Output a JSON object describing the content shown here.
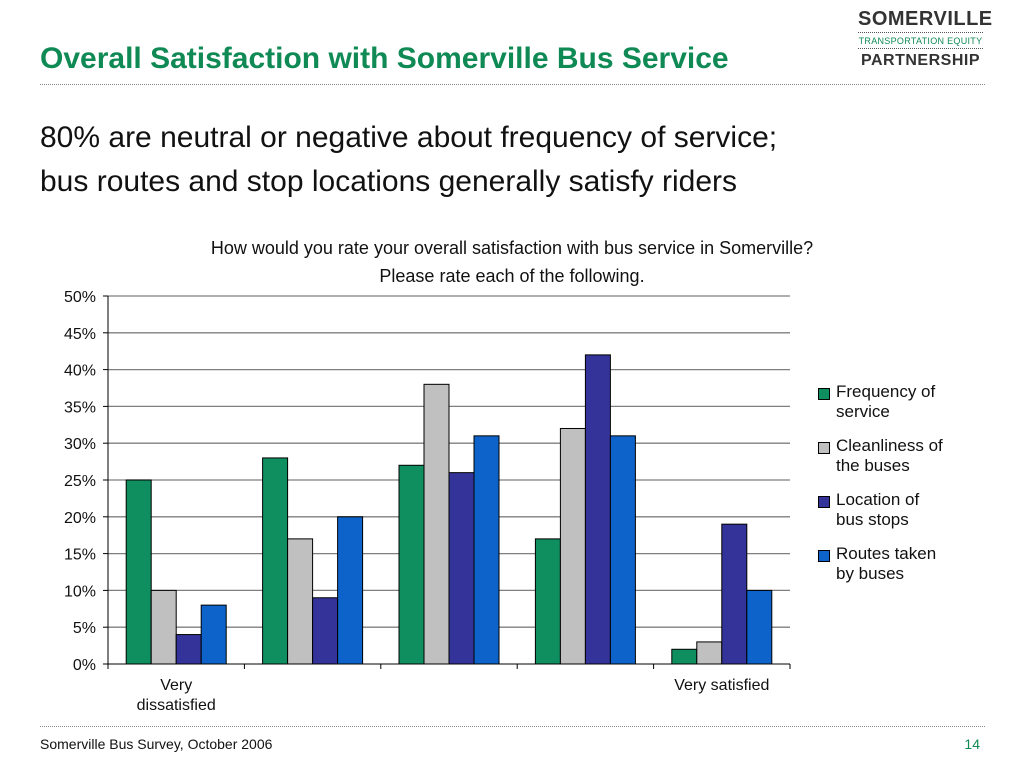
{
  "slide": {
    "title": "Overall Satisfaction with Somerville Bus Service",
    "subtitle_line1": "80% are neutral or negative about frequency of service;",
    "subtitle_line2": "bus routes and stop locations generally satisfy riders",
    "question_line1": "How would you rate your overall satisfaction with bus service in Somerville?",
    "question_line2": "Please rate each of the following.",
    "footer": "Somerville Bus Survey, October 2006",
    "page_number": "14"
  },
  "logo": {
    "line1": "SOMERVILLE",
    "line2": "TRANSPORTATION EQUITY",
    "line3": "PARTNERSHIP"
  },
  "chart_data": {
    "type": "bar",
    "categories": [
      "Very dissatisfied",
      "",
      "",
      "",
      "Very satisfied"
    ],
    "category_label_lines": [
      [
        "Very",
        "dissatisfied"
      ],
      [],
      [],
      [],
      [
        "Very satisfied"
      ]
    ],
    "series": [
      {
        "name": "Frequency of service",
        "legend_lines": [
          "Frequency of",
          "service"
        ],
        "color": "#0f8f5f",
        "values": [
          25,
          28,
          27,
          17,
          2
        ]
      },
      {
        "name": "Cleanliness of the buses",
        "legend_lines": [
          "Cleanliness of",
          "the buses"
        ],
        "color": "#c0c0c0",
        "values": [
          10,
          17,
          38,
          32,
          3
        ]
      },
      {
        "name": "Location of bus stops",
        "legend_lines": [
          "Location of",
          "bus stops"
        ],
        "color": "#333399",
        "values": [
          4,
          9,
          26,
          42,
          19
        ]
      },
      {
        "name": "Routes taken by buses",
        "legend_lines": [
          "Routes taken",
          "by buses"
        ],
        "color": "#0d63c9",
        "values": [
          8,
          20,
          31,
          31,
          10
        ]
      }
    ],
    "ylim": [
      0,
      50
    ],
    "ytick_step": 5,
    "ytick_labels": [
      "0%",
      "5%",
      "10%",
      "15%",
      "20%",
      "25%",
      "30%",
      "35%",
      "40%",
      "45%",
      "50%"
    ],
    "grid": true,
    "legend_position": "right"
  }
}
